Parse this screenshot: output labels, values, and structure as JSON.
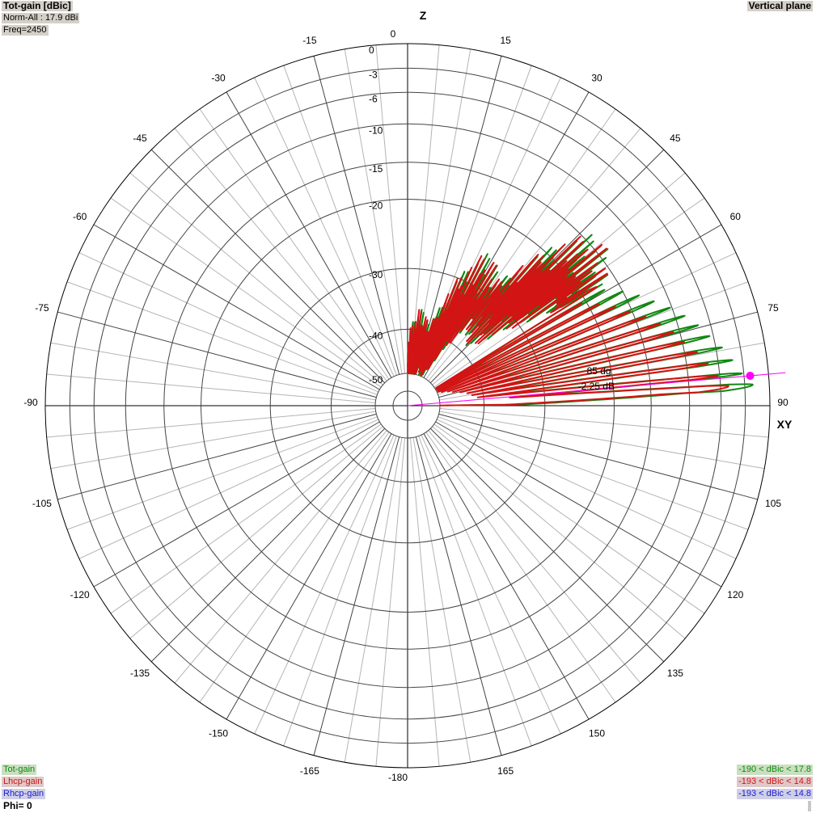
{
  "header": {
    "title": "Tot-gain [dBic]",
    "norm": "Norm-All : 17.9 dBi",
    "freq": "Freq=2450",
    "plane": "Vertical plane"
  },
  "footer": {
    "legend": [
      {
        "name": "Tot-gain",
        "range": "-190 < dBic < 17.8",
        "color": "#118811"
      },
      {
        "name": "Lhcp-gain",
        "range": "-193 < dBic < 14.8",
        "color": "#d21414"
      },
      {
        "name": "Rhcp-gain",
        "range": "-193 < dBic < 14.8",
        "color": "#1a1ad2"
      }
    ],
    "phi": "Phi= 0"
  },
  "chart_data": {
    "type": "polar",
    "axis_labels": {
      "top": "Z",
      "right": "XY"
    },
    "angle_ticks": [
      0,
      15,
      30,
      45,
      60,
      75,
      90,
      105,
      120,
      135,
      150,
      165,
      180,
      -165,
      -150,
      -135,
      -120,
      -105,
      -90,
      -75,
      -60,
      -45,
      -30,
      -15
    ],
    "angle_tick_text": [
      "0",
      "15",
      "30",
      "45",
      "60",
      "75",
      "90",
      "105",
      "120",
      "135",
      "150",
      "165",
      "-180",
      "-165",
      "-150",
      "-135",
      "-120",
      "-105",
      "-90",
      "-75",
      "-60",
      "-45",
      "-30",
      "-15"
    ],
    "angle_zero_label": "0",
    "radial_rings_db": [
      0,
      -3,
      -6,
      -10,
      -15,
      -20,
      -30,
      -40,
      -50
    ],
    "radial_ring_text": [
      "0",
      "-3",
      "-6",
      "-10",
      "-15",
      "-20",
      "-30",
      "-40",
      "-50"
    ],
    "grid": true,
    "colors": {
      "tot": "#118811",
      "lhcp": "#d21414",
      "rhcp": "#1a1ad2",
      "marker": "#ff00ff",
      "grid_major": "#000000",
      "grid_minor": "#b4b4b4"
    },
    "series": [
      {
        "name": "Tot-gain",
        "lobes_deg": [
          86.5,
          84.5,
          82,
          79.5,
          77,
          74.5,
          72,
          69.5,
          67,
          64.5,
          62,
          59.5
        ],
        "lobes_db": [
          -2.0,
          -3.2,
          -4.2,
          -5.2,
          -6.4,
          -7.5,
          -8.8,
          -10.2,
          -11.8,
          -13.3,
          -15.0,
          -17.0
        ],
        "noise_floor_db": -48
      },
      {
        "name": "Lhcp-gain",
        "lobes_deg": [
          86.5,
          84.5,
          82,
          79.5,
          77,
          74.5,
          72,
          69.5,
          67,
          64.5,
          62,
          59.5
        ],
        "lobes_db": [
          -5.0,
          -6.2,
          -7.3,
          -8.4,
          -9.7,
          -10.8,
          -12.1,
          -13.6,
          -15.2,
          -16.8,
          -18.6,
          -20.6
        ],
        "noise_floor_db": -50
      }
    ],
    "marker": {
      "angle_deg": 85,
      "value_db": -2.25,
      "angle_text": "85 dg",
      "value_text": "-2.25 dB"
    }
  }
}
